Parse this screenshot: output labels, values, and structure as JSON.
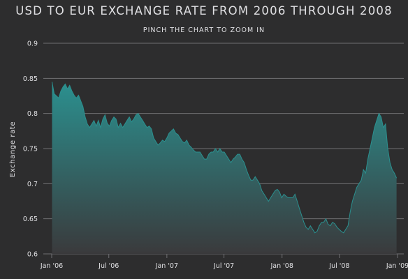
{
  "chart": {
    "title": "USD TO EUR EXCHANGE RATE FROM 2006 THROUGH 2008",
    "subtitle": "PINCH THE CHART TO ZOOM IN",
    "colors": {
      "background": "#2d2d2e",
      "line": "#2b908f",
      "text": "#e0e0e3",
      "grid": "#707073",
      "area_top": "#2b908f",
      "area_bottom": "#3a3a3c"
    }
  },
  "chart_data": {
    "type": "area",
    "title": "USD TO EUR EXCHANGE RATE FROM 2006 THROUGH 2008",
    "subtitle": "PINCH THE CHART TO ZOOM IN",
    "xlabel": "",
    "ylabel": "Exchange rate",
    "ylim": [
      0.6,
      0.9
    ],
    "yticks": [
      "0.6",
      "0.65",
      "0.7",
      "0.75",
      "0.8",
      "0.85",
      "0.9"
    ],
    "xlim": [
      "2006-01-01",
      "2009-01-01"
    ],
    "xticks": [
      "2006-01-01",
      "2006-07-01",
      "2007-01-01",
      "2007-07-01",
      "2008-01-01",
      "2008-07-01",
      "2009-01-01"
    ],
    "xtick_labels": [
      "Jan '06",
      "Jul '06",
      "Jan '07",
      "Jul '07",
      "Jan '08",
      "Jul '08",
      "Jan '09"
    ],
    "grid": true,
    "legend": false,
    "x": [
      "2006-01-02",
      "2006-01-09",
      "2006-01-16",
      "2006-01-23",
      "2006-01-30",
      "2006-02-06",
      "2006-02-13",
      "2006-02-20",
      "2006-02-27",
      "2006-03-06",
      "2006-03-13",
      "2006-03-20",
      "2006-03-27",
      "2006-04-03",
      "2006-04-10",
      "2006-04-17",
      "2006-04-24",
      "2006-05-01",
      "2006-05-08",
      "2006-05-15",
      "2006-05-22",
      "2006-05-29",
      "2006-06-05",
      "2006-06-12",
      "2006-06-19",
      "2006-06-26",
      "2006-07-03",
      "2006-07-10",
      "2006-07-17",
      "2006-07-24",
      "2006-07-31",
      "2006-08-07",
      "2006-08-14",
      "2006-08-21",
      "2006-08-28",
      "2006-09-04",
      "2006-09-11",
      "2006-09-18",
      "2006-09-25",
      "2006-10-02",
      "2006-10-09",
      "2006-10-16",
      "2006-10-23",
      "2006-10-30",
      "2006-11-06",
      "2006-11-13",
      "2006-11-20",
      "2006-11-27",
      "2006-12-04",
      "2006-12-11",
      "2006-12-18",
      "2006-12-25",
      "2007-01-01",
      "2007-01-08",
      "2007-01-15",
      "2007-01-22",
      "2007-01-29",
      "2007-02-05",
      "2007-02-12",
      "2007-02-19",
      "2007-02-26",
      "2007-03-05",
      "2007-03-12",
      "2007-03-19",
      "2007-03-26",
      "2007-04-02",
      "2007-04-09",
      "2007-04-16",
      "2007-04-23",
      "2007-04-30",
      "2007-05-07",
      "2007-05-14",
      "2007-05-21",
      "2007-05-28",
      "2007-06-04",
      "2007-06-11",
      "2007-06-18",
      "2007-06-25",
      "2007-07-02",
      "2007-07-09",
      "2007-07-16",
      "2007-07-23",
      "2007-07-30",
      "2007-08-06",
      "2007-08-13",
      "2007-08-20",
      "2007-08-27",
      "2007-09-03",
      "2007-09-10",
      "2007-09-17",
      "2007-09-24",
      "2007-10-01",
      "2007-10-08",
      "2007-10-15",
      "2007-10-22",
      "2007-10-29",
      "2007-11-05",
      "2007-11-12",
      "2007-11-19",
      "2007-11-26",
      "2007-12-03",
      "2007-12-10",
      "2007-12-17",
      "2007-12-24",
      "2007-12-31",
      "2008-01-07",
      "2008-01-14",
      "2008-01-21",
      "2008-01-28",
      "2008-02-04",
      "2008-02-11",
      "2008-02-18",
      "2008-02-25",
      "2008-03-03",
      "2008-03-10",
      "2008-03-17",
      "2008-03-24",
      "2008-03-31",
      "2008-04-07",
      "2008-04-14",
      "2008-04-21",
      "2008-04-28",
      "2008-05-05",
      "2008-05-12",
      "2008-05-19",
      "2008-05-26",
      "2008-06-02",
      "2008-06-09",
      "2008-06-16",
      "2008-06-23",
      "2008-06-30",
      "2008-07-07",
      "2008-07-14",
      "2008-07-21",
      "2008-07-28",
      "2008-08-04",
      "2008-08-11",
      "2008-08-18",
      "2008-08-25",
      "2008-09-01",
      "2008-09-08",
      "2008-09-15",
      "2008-09-22",
      "2008-09-29",
      "2008-10-06",
      "2008-10-13",
      "2008-10-20",
      "2008-10-27",
      "2008-11-03",
      "2008-11-10",
      "2008-11-17",
      "2008-11-24",
      "2008-12-01",
      "2008-12-08",
      "2008-12-15",
      "2008-12-22",
      "2008-12-29"
    ],
    "series": [
      {
        "values": [
          0.845,
          0.828,
          0.825,
          0.822,
          0.832,
          0.838,
          0.842,
          0.835,
          0.84,
          0.832,
          0.826,
          0.822,
          0.826,
          0.818,
          0.81,
          0.795,
          0.785,
          0.78,
          0.785,
          0.79,
          0.782,
          0.79,
          0.78,
          0.792,
          0.798,
          0.786,
          0.782,
          0.79,
          0.795,
          0.792,
          0.78,
          0.786,
          0.78,
          0.785,
          0.79,
          0.795,
          0.788,
          0.792,
          0.798,
          0.8,
          0.795,
          0.79,
          0.785,
          0.78,
          0.782,
          0.778,
          0.765,
          0.76,
          0.755,
          0.758,
          0.762,
          0.76,
          0.765,
          0.772,
          0.775,
          0.778,
          0.772,
          0.77,
          0.765,
          0.76,
          0.758,
          0.762,
          0.755,
          0.752,
          0.748,
          0.745,
          0.745,
          0.745,
          0.74,
          0.735,
          0.735,
          0.742,
          0.745,
          0.745,
          0.75,
          0.745,
          0.75,
          0.745,
          0.745,
          0.74,
          0.735,
          0.73,
          0.735,
          0.738,
          0.742,
          0.742,
          0.735,
          0.73,
          0.72,
          0.712,
          0.705,
          0.705,
          0.71,
          0.705,
          0.7,
          0.69,
          0.685,
          0.68,
          0.675,
          0.68,
          0.685,
          0.69,
          0.692,
          0.688,
          0.68,
          0.685,
          0.682,
          0.68,
          0.68,
          0.68,
          0.685,
          0.675,
          0.665,
          0.655,
          0.645,
          0.638,
          0.635,
          0.64,
          0.635,
          0.63,
          0.632,
          0.64,
          0.645,
          0.645,
          0.65,
          0.642,
          0.64,
          0.645,
          0.643,
          0.638,
          0.635,
          0.632,
          0.63,
          0.635,
          0.64,
          0.66,
          0.675,
          0.685,
          0.695,
          0.7,
          0.705,
          0.72,
          0.715,
          0.735,
          0.75,
          0.765,
          0.78,
          0.79,
          0.8,
          0.795,
          0.78,
          0.785,
          0.75,
          0.73,
          0.72,
          0.715,
          0.708
        ]
      }
    ]
  }
}
